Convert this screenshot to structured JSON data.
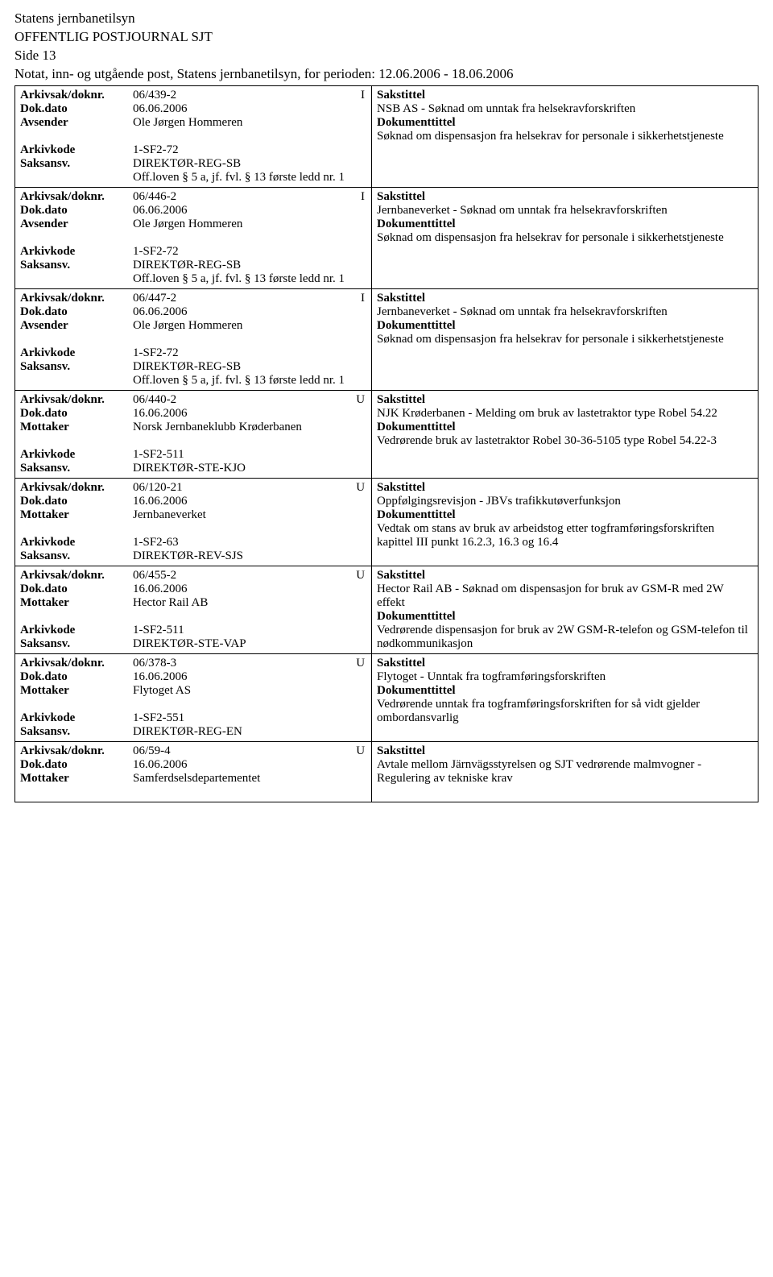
{
  "header": {
    "org": "Statens jernbanetilsyn",
    "title": "OFFENTLIG POSTJOURNAL SJT",
    "side": "Side 13",
    "period": "Notat, inn- og utgående post, Statens jernbanetilsyn, for perioden: 12.06.2006 - 18.06.2006"
  },
  "labels": {
    "arkivsak": "Arkivsak/doknr.",
    "dokdato": "Dok.dato",
    "avsender": "Avsender",
    "mottaker": "Mottaker",
    "arkivkode": "Arkivkode",
    "saksansv": "Saksansv.",
    "sakstittel": "Sakstittel",
    "dokumenttittel": "Dokumenttittel"
  },
  "entries": [
    {
      "arkivsak": "06/439-2",
      "io": "I",
      "dokdato": "06.06.2006",
      "party_label": "Avsender",
      "party": "Ole Jørgen Hommeren",
      "arkivkode": "1-SF2-72",
      "saksansv": "DIREKTØR-REG-SB",
      "extra": "Off.loven § 5 a, jf. fvl. § 13 første ledd nr. 1",
      "sakstittel": "NSB AS - Søknad om unntak fra helsekravforskriften",
      "doktittel": "Søknad om dispensasjon fra helsekrav for personale i sikkerhetstjeneste"
    },
    {
      "arkivsak": "06/446-2",
      "io": "I",
      "dokdato": "06.06.2006",
      "party_label": "Avsender",
      "party": "Ole Jørgen Hommeren",
      "arkivkode": "1-SF2-72",
      "saksansv": "DIREKTØR-REG-SB",
      "extra": "Off.loven § 5 a, jf. fvl. § 13 første ledd nr. 1",
      "sakstittel": "Jernbaneverket - Søknad om unntak fra helsekravforskriften",
      "doktittel": "Søknad om dispensasjon fra helsekrav for personale i sikkerhetstjeneste"
    },
    {
      "arkivsak": "06/447-2",
      "io": "I",
      "dokdato": "06.06.2006",
      "party_label": "Avsender",
      "party": "Ole Jørgen Hommeren",
      "arkivkode": "1-SF2-72",
      "saksansv": "DIREKTØR-REG-SB",
      "extra": "Off.loven § 5 a, jf. fvl. § 13 første ledd nr. 1",
      "sakstittel": "Jernbaneverket - Søknad om unntak fra helsekravforskriften",
      "doktittel": "Søknad om dispensasjon fra helsekrav for personale i sikkerhetstjeneste"
    },
    {
      "arkivsak": "06/440-2",
      "io": "U",
      "dokdato": "16.06.2006",
      "party_label": "Mottaker",
      "party": "Norsk Jernbaneklubb Krøderbanen",
      "arkivkode": "1-SF2-511",
      "saksansv": "DIREKTØR-STE-KJO",
      "extra": "",
      "sakstittel": "NJK Krøderbanen - Melding om bruk av lastetraktor type Robel 54.22",
      "doktittel": "Vedrørende bruk av lastetraktor Robel 30-36-5105 type Robel 54.22-3"
    },
    {
      "arkivsak": "06/120-21",
      "io": "U",
      "dokdato": "16.06.2006",
      "party_label": "Mottaker",
      "party": "Jernbaneverket",
      "arkivkode": "1-SF2-63",
      "saksansv": "DIREKTØR-REV-SJS",
      "extra": "",
      "sakstittel": "Oppfølgingsrevisjon - JBVs trafikkutøverfunksjon",
      "doktittel": "Vedtak om stans av bruk av arbeidstog etter togframføringsforskriften kapittel III punkt 16.2.3, 16.3 og 16.4"
    },
    {
      "arkivsak": "06/455-2",
      "io": "U",
      "dokdato": "16.06.2006",
      "party_label": "Mottaker",
      "party": "Hector Rail AB",
      "arkivkode": "1-SF2-511",
      "saksansv": "DIREKTØR-STE-VAP",
      "extra": "",
      "sakstittel": "Hector Rail AB - Søknad om dispensasjon for bruk av GSM-R med 2W effekt",
      "doktittel": "Vedrørende dispensasjon for bruk av 2W GSM-R-telefon og GSM-telefon til nødkommunikasjon"
    },
    {
      "arkivsak": "06/378-3",
      "io": "U",
      "dokdato": "16.06.2006",
      "party_label": "Mottaker",
      "party": "Flytoget AS",
      "arkivkode": "1-SF2-551",
      "saksansv": "DIREKTØR-REG-EN",
      "extra": "",
      "sakstittel": "Flytoget - Unntak fra togframføringsforskriften",
      "doktittel": "Vedrørende unntak fra togframføringsforskriften for så vidt gjelder ombordansvarlig"
    },
    {
      "arkivsak": "06/59-4",
      "io": "U",
      "dokdato": "16.06.2006",
      "party_label": "Mottaker",
      "party": "Samferdselsdepartementet",
      "arkivkode": "",
      "saksansv": "",
      "extra": "",
      "sakstittel": "Avtale mellom Järnvägsstyrelsen og SJT vedrørende malmvogner - Regulering av tekniske krav",
      "doktittel": ""
    }
  ]
}
